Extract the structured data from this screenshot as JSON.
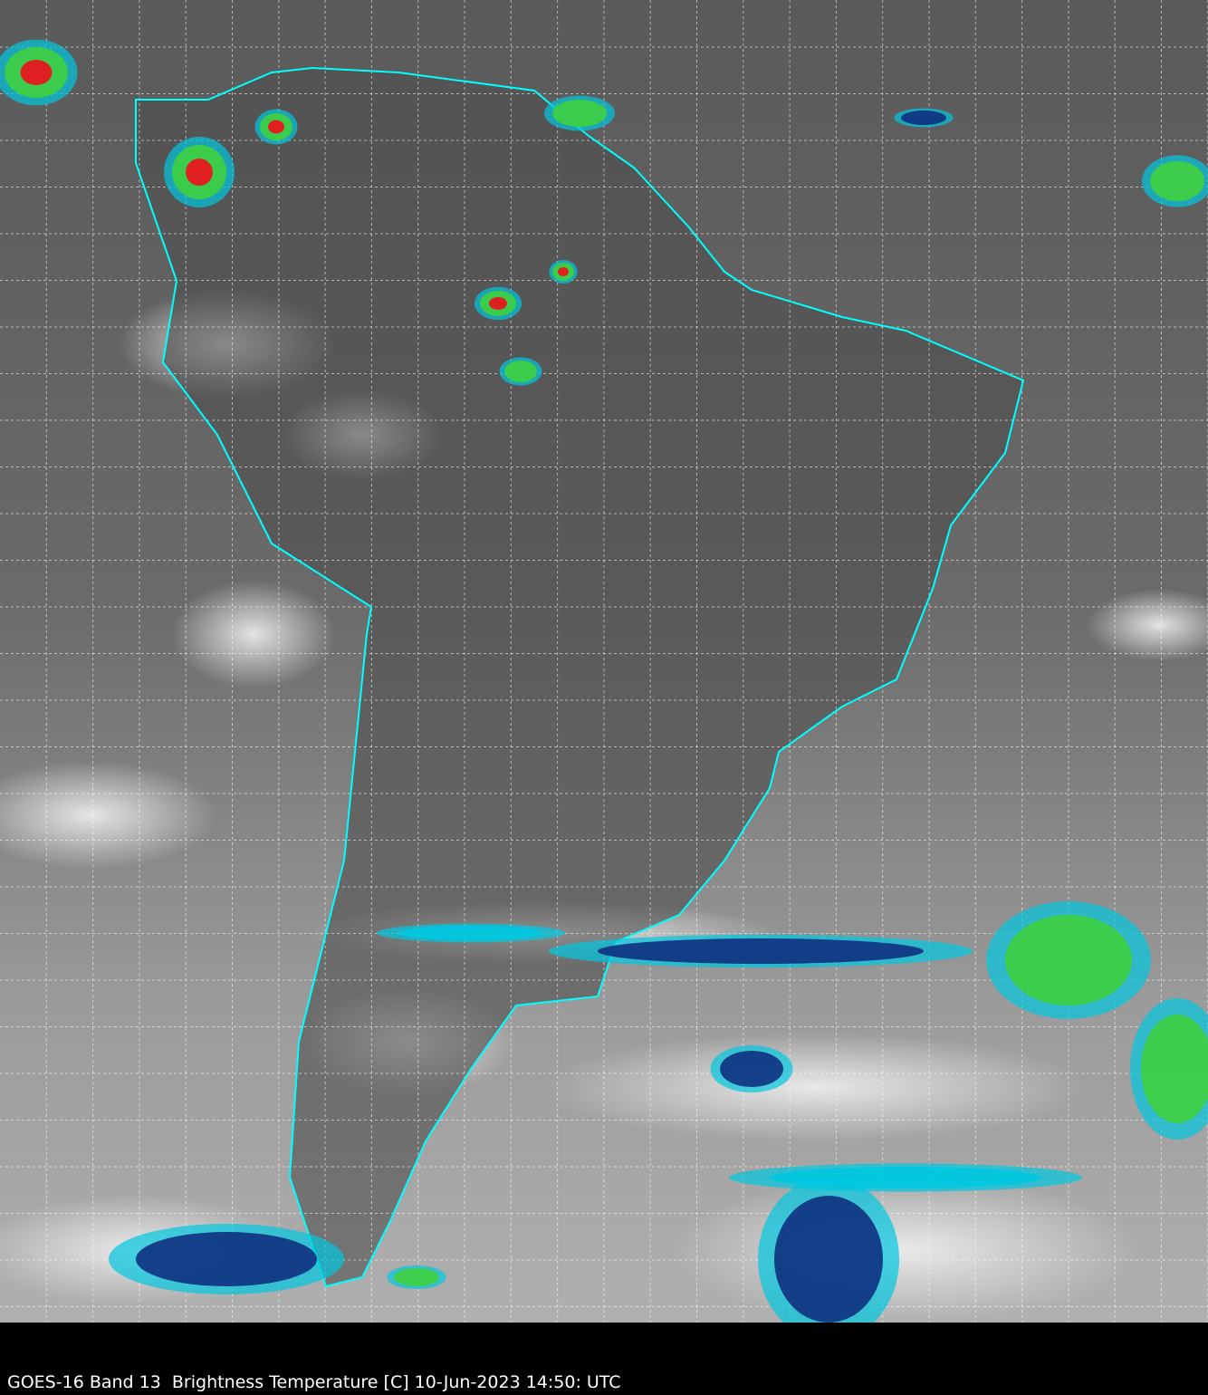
{
  "caption": "GOES-16 Band 13  Brightness Temperature [C] 10-Jun-2023 14:50: UTC",
  "colors": {
    "background": "#000000",
    "boundaries": "#00ffff",
    "grid": "#ffffff",
    "cold_cloud_cyan": "#00c8e0",
    "cold_cloud_blue": "#103080",
    "cold_cloud_green": "#40d040",
    "cold_cloud_red": "#e02020"
  },
  "grid_style": "dashed",
  "map_region": "South America"
}
